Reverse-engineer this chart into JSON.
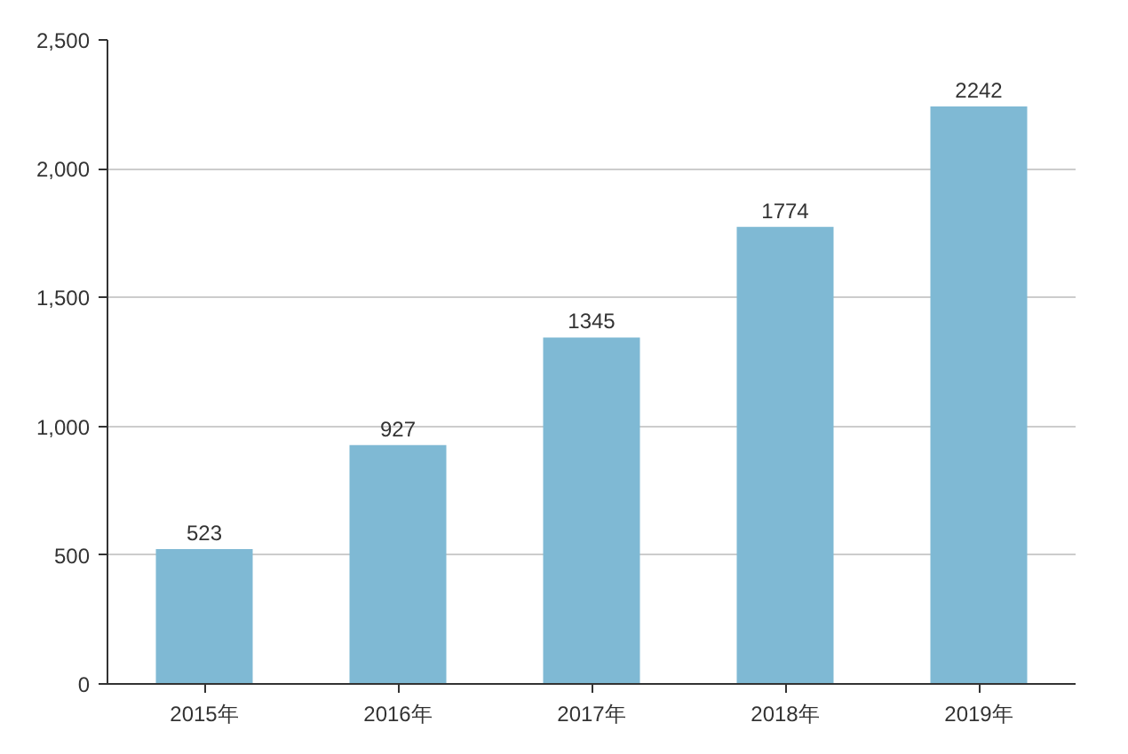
{
  "chart_data": {
    "type": "bar",
    "categories": [
      "2015年",
      "2016年",
      "2017年",
      "2018年",
      "2019年"
    ],
    "values": [
      523,
      927,
      1345,
      1774,
      2242
    ],
    "color": "#7fb9d4",
    "ylim": [
      0,
      2500
    ],
    "yticks": [
      0,
      500,
      {
        "value": 1000,
        "label": "1,000"
      },
      {
        "value": 1500,
        "label": "1,500"
      },
      {
        "value": 2000,
        "label": "2,000"
      },
      {
        "value": 2500,
        "label": "2,500"
      }
    ],
    "grid": "y",
    "data_labels": true
  }
}
